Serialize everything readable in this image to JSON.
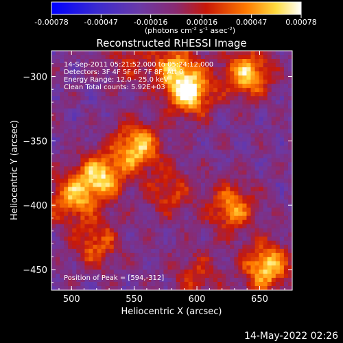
{
  "chart_data": {
    "type": "heatmap",
    "title": "Reconstructed RHESSI Image",
    "xlabel": "Heliocentric X (arcsec)",
    "ylabel": "Heliocentric Y (arcsec)",
    "xlim": [
      484,
      676
    ],
    "ylim": [
      -466,
      -280
    ],
    "x_ticks": [
      500,
      550,
      600,
      650
    ],
    "y_ticks": [
      -300,
      -350,
      -400,
      -450
    ],
    "colorbar": {
      "min": -0.00078,
      "max": 0.00078,
      "tick_values": [
        -0.00078,
        -0.00047,
        -0.00016,
        0.00016,
        0.00047,
        0.00078
      ],
      "tick_labels": [
        "-0.00078",
        "-0.00047",
        "-0.00016",
        "0.00016",
        "0.00047",
        "0.00078"
      ],
      "unit_label": "(photons cm",
      "unit_exp1": "-2",
      "unit_mid": " s",
      "unit_exp2": "-1",
      "unit_end": " asec",
      "unit_exp3": "-2",
      "unit_close": ")",
      "colors": [
        "#0000ff",
        "#5a2ab8",
        "#7a3a9a",
        "#c02010",
        "#ff7000",
        "#ffff80",
        "#ffffff"
      ]
    },
    "annotations": [
      "14-Sep-2011 05:21:52.000 to 05:24:12.000",
      "Detectors: 3F 4F 5F 6F 7F 8F, Att 0",
      "Energy Range: 12.0 - 25.0 keV",
      "Clean     Total counts: 5.92E+03"
    ],
    "peak_label": "Position of Peak = [594,-312]",
    "peak": [
      594,
      -312
    ],
    "sources": [
      {
        "x": 552,
        "y": -355,
        "intensity": 0.0007
      },
      {
        "x": 523,
        "y": -378,
        "intensity": 0.00072
      },
      {
        "x": 500,
        "y": -395,
        "intensity": 0.00055
      },
      {
        "x": 594,
        "y": -312,
        "intensity": 0.00078
      },
      {
        "x": 640,
        "y": -298,
        "intensity": 0.00068
      },
      {
        "x": 582,
        "y": -292,
        "intensity": 0.00045
      },
      {
        "x": 655,
        "y": -448,
        "intensity": 0.00074
      },
      {
        "x": 628,
        "y": -402,
        "intensity": 0.00055
      },
      {
        "x": 520,
        "y": -430,
        "intensity": 0.0004
      },
      {
        "x": 578,
        "y": -390,
        "intensity": 0.0003
      },
      {
        "x": 600,
        "y": -455,
        "intensity": 0.00025
      },
      {
        "x": 545,
        "y": -288,
        "intensity": 0.0002
      }
    ],
    "background": -0.00012
  },
  "timestamp": "14-May-2022 02:26"
}
